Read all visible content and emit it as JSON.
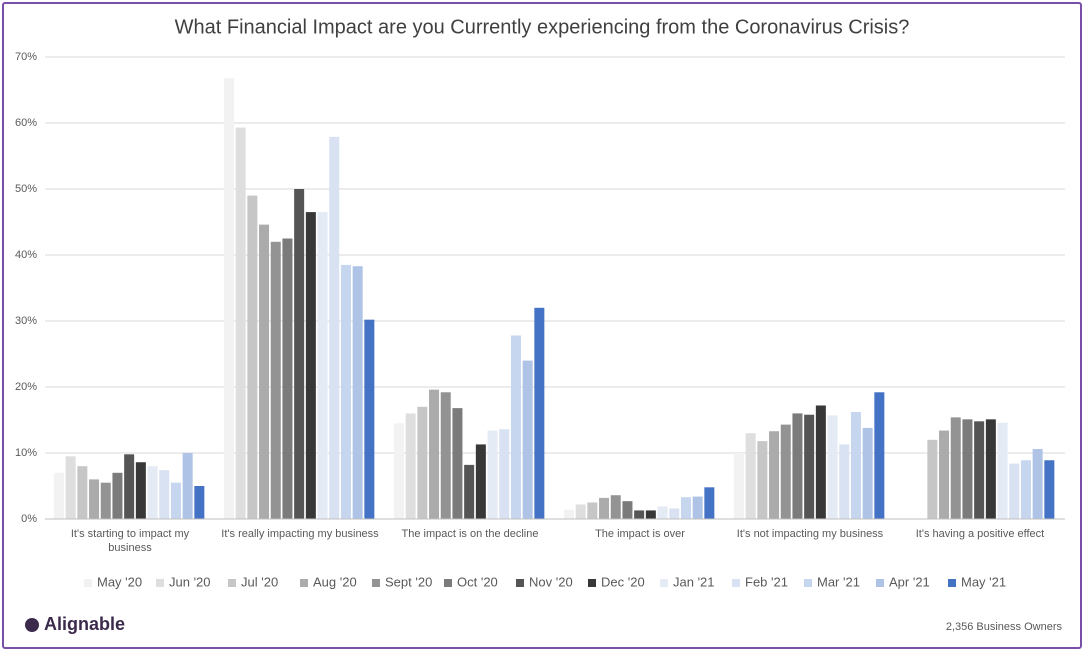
{
  "chart_data": {
    "type": "bar",
    "title": "What Financial Impact are you Currently experiencing from the Coronavirus Crisis?",
    "categories": [
      "It's starting to impact my business",
      "It's really impacting my business",
      "The impact is on the decline",
      "The impact is over",
      "It's not impacting my business",
      "It's having a positive effect"
    ],
    "series": [
      {
        "name": "May '20",
        "color": "#f2f2f2",
        "values": [
          7,
          66.8,
          14.5,
          1.4,
          10,
          null
        ]
      },
      {
        "name": "Jun '20",
        "color": "#dedede",
        "values": [
          9.5,
          59.3,
          16,
          2.2,
          13,
          null
        ]
      },
      {
        "name": "Jul '20",
        "color": "#c6c6c6",
        "values": [
          8,
          49,
          17,
          2.5,
          11.8,
          12
        ]
      },
      {
        "name": "Aug '20",
        "color": "#ababab",
        "values": [
          6,
          44.6,
          19.6,
          3.2,
          13.3,
          13.4
        ]
      },
      {
        "name": "Sept '20",
        "color": "#939393",
        "values": [
          5.5,
          42,
          19.2,
          3.6,
          14.3,
          15.4
        ]
      },
      {
        "name": "Oct '20",
        "color": "#7b7b7b",
        "values": [
          7,
          42.5,
          16.8,
          2.7,
          16,
          15.1
        ]
      },
      {
        "name": "Nov '20",
        "color": "#555555",
        "values": [
          9.8,
          50,
          8.2,
          1.3,
          15.8,
          14.8
        ]
      },
      {
        "name": "Dec '20",
        "color": "#383838",
        "values": [
          8.6,
          46.5,
          11.3,
          1.3,
          17.2,
          15.1
        ]
      },
      {
        "name": "Jan '21",
        "color": "#e4ebf5",
        "values": [
          8,
          46.5,
          13.4,
          1.9,
          15.7,
          14.6
        ]
      },
      {
        "name": "Feb '21",
        "color": "#d8e2f2",
        "values": [
          7.4,
          57.9,
          13.6,
          1.6,
          11.3,
          8.4
        ]
      },
      {
        "name": "Mar '21",
        "color": "#c6d6ef",
        "values": [
          5.5,
          38.5,
          27.8,
          3.3,
          16.2,
          8.9
        ]
      },
      {
        "name": "Apr '21",
        "color": "#aec3e6",
        "values": [
          10,
          38.3,
          24,
          3.4,
          13.8,
          10.6
        ]
      },
      {
        "name": "May '21",
        "color": "#4472c4",
        "values": [
          5,
          30.2,
          32,
          4.8,
          19.2,
          8.9
        ]
      }
    ],
    "ylim": [
      0,
      70
    ],
    "yticks": [
      {
        "value": 0,
        "label": "0%"
      },
      {
        "value": 10,
        "label": "10%"
      },
      {
        "value": 20,
        "label": "20%"
      },
      {
        "value": 30,
        "label": "30%"
      },
      {
        "value": 40,
        "label": "40%"
      },
      {
        "value": 50,
        "label": "50%"
      },
      {
        "value": 60,
        "label": "60%"
      },
      {
        "value": 70,
        "label": "70%"
      }
    ],
    "grid": true,
    "legend": "bottom",
    "logo": "Alignable",
    "footnote": "2,356 Business Owners"
  }
}
